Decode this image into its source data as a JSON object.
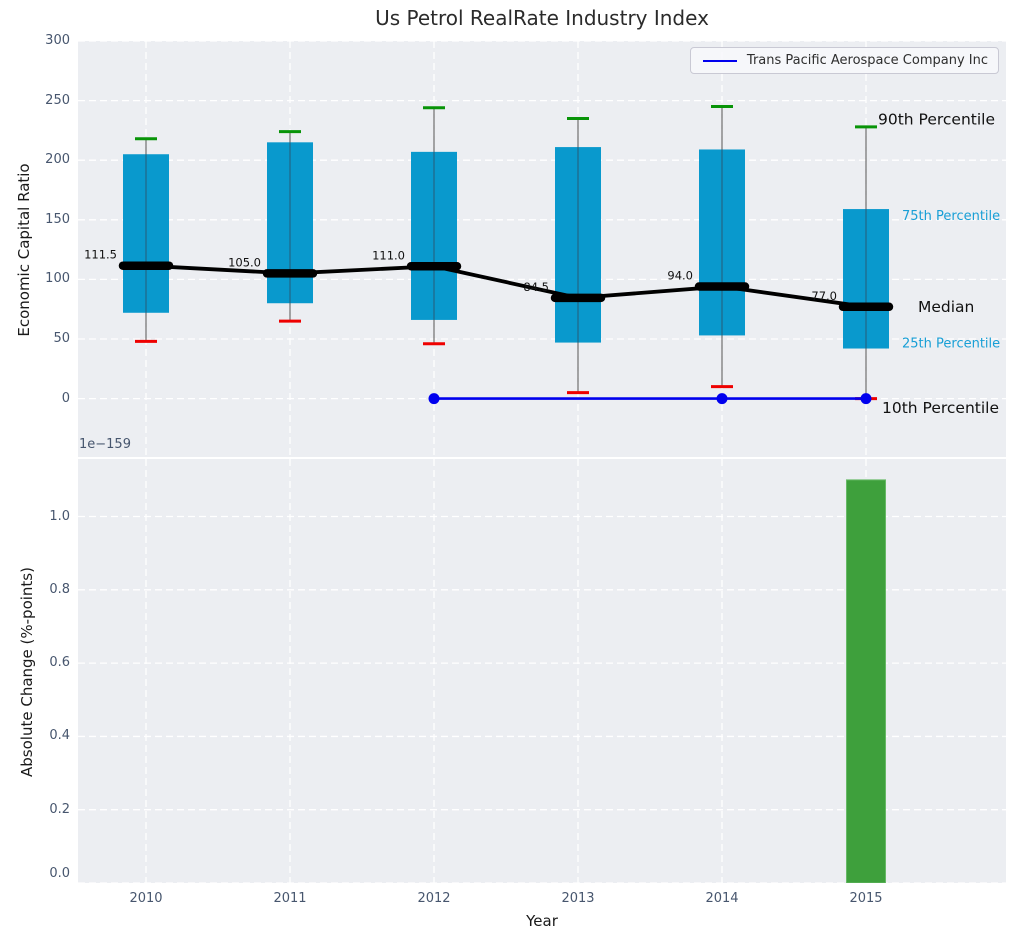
{
  "title": "Us Petrol RealRate Industry Index",
  "colors": {
    "background": "#eceef2",
    "grid": "#ffffff",
    "box": "#0999cd",
    "cap_90th": "#089408",
    "cap_10th": "#ee0000",
    "whisker": "#6e6e6e",
    "median": "#000000",
    "company_line": "#0000ee",
    "bar": "#3ea03c",
    "bar_edge": "#67b966",
    "tick_text": "#47566e",
    "annotation_big": "#111111",
    "annotation_small": "#189fd6"
  },
  "chart_data": [
    {
      "type": "box-percentile",
      "title": "Us Petrol RealRate Industry Index",
      "ylabel": "Economic Capital Ratio",
      "ylim": [
        -49,
        300
      ],
      "yticks": [
        0,
        50,
        100,
        150,
        200,
        250,
        300
      ],
      "categories": [
        2010,
        2011,
        2012,
        2013,
        2014,
        2015
      ],
      "grid": "dashed-white",
      "stats": [
        {
          "year": 2010,
          "p10": 48,
          "p25": 72,
          "median": 111.5,
          "p75": 205,
          "p90": 218
        },
        {
          "year": 2011,
          "p10": 65,
          "p25": 80,
          "median": 105.0,
          "p75": 215,
          "p90": 224
        },
        {
          "year": 2012,
          "p10": 46,
          "p25": 66,
          "median": 111.0,
          "p75": 207,
          "p90": 244
        },
        {
          "year": 2013,
          "p10": 5,
          "p25": 47,
          "median": 84.5,
          "p75": 211,
          "p90": 235
        },
        {
          "year": 2014,
          "p10": 10,
          "p25": 53,
          "median": 94.0,
          "p75": 209,
          "p90": 245
        },
        {
          "year": 2015,
          "p10": 0,
          "p25": 42,
          "median": 77.0,
          "p75": 159,
          "p90": 228
        }
      ],
      "median_label_values": [
        "111.5",
        "105.0",
        "111.0",
        "84.5",
        "94.0",
        "77.0"
      ],
      "company_line": {
        "name": "Trans Pacific Aerospace Company Inc",
        "color": "#0000ee",
        "points": [
          {
            "year": 2012,
            "value": 0,
            "marker": true
          },
          {
            "year": 2013,
            "value": 0,
            "marker": false
          },
          {
            "year": 2014,
            "value": 0,
            "marker": true
          },
          {
            "year": 2015,
            "value": 0,
            "marker": true
          }
        ]
      },
      "annotations": [
        {
          "text": "90th Percentile",
          "v": 234,
          "x": 878,
          "style": "big"
        },
        {
          "text": "75th Percentile",
          "v": 154,
          "x": 902,
          "style": "small"
        },
        {
          "text": "Median",
          "v": 77,
          "x": 918,
          "style": "big"
        },
        {
          "text": "25th Percentile",
          "v": 47,
          "x": 902,
          "style": "small"
        },
        {
          "text": "10th Percentile",
          "v": -8,
          "x": 882,
          "style": "big"
        }
      ],
      "legend_position": "upper right"
    },
    {
      "type": "bar",
      "ylabel": "Absolute Change (%-points)",
      "xlabel": "Year",
      "offset_text": "1e−159",
      "ylim": [
        0,
        1.157
      ],
      "yticks": [
        0.0,
        0.2,
        0.4,
        0.6,
        0.8,
        1.0
      ],
      "categories": [
        2010,
        2011,
        2012,
        2013,
        2014,
        2015
      ],
      "values": [
        null,
        null,
        null,
        null,
        null,
        1.1
      ],
      "grid": "dashed-white"
    }
  ]
}
